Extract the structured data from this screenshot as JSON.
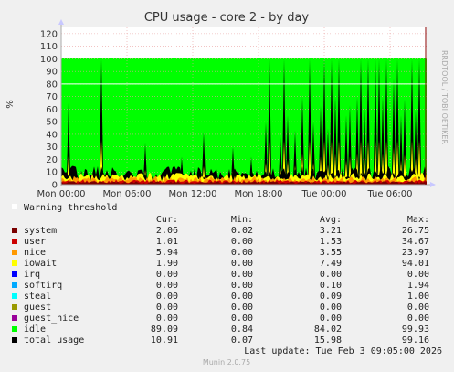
{
  "chart_data": {
    "type": "area",
    "title": "CPU usage - core 2 - by day",
    "ylabel": "%",
    "ylim": [
      0,
      125
    ],
    "yticks": [
      0,
      10,
      20,
      30,
      40,
      50,
      60,
      70,
      80,
      90,
      100,
      110,
      120
    ],
    "x_ticks": [
      "Mon 00:00",
      "Mon 06:00",
      "Mon 12:00",
      "Mon 18:00",
      "Tue 00:00",
      "Tue 06:00"
    ],
    "grid": true,
    "side_text": "RRDTOOL / TOBI OETIKER",
    "warning_threshold": 80,
    "warning_label": "Warning threshold",
    "columns": [
      "Cur:",
      "Min:",
      "Avg:",
      "Max:"
    ],
    "series": [
      {
        "name": "system",
        "color": "#7a0000",
        "cur": "2.06",
        "min": "0.02",
        "avg": "3.21",
        "max": "26.75"
      },
      {
        "name": "user",
        "color": "#cc0000",
        "cur": "1.01",
        "min": "0.00",
        "avg": "1.53",
        "max": "34.67"
      },
      {
        "name": "nice",
        "color": "#ff9900",
        "cur": "5.94",
        "min": "0.00",
        "avg": "3.55",
        "max": "23.97"
      },
      {
        "name": "iowait",
        "color": "#ffff00",
        "cur": "1.90",
        "min": "0.00",
        "avg": "7.49",
        "max": "94.01"
      },
      {
        "name": "irq",
        "color": "#0000ff",
        "cur": "0.00",
        "min": "0.00",
        "avg": "0.00",
        "max": "0.00"
      },
      {
        "name": "softirq",
        "color": "#00aaff",
        "cur": "0.00",
        "min": "0.00",
        "avg": "0.10",
        "max": "1.94"
      },
      {
        "name": "steal",
        "color": "#00ffff",
        "cur": "0.00",
        "min": "0.00",
        "avg": "0.09",
        "max": "1.00"
      },
      {
        "name": "guest",
        "color": "#999900",
        "cur": "0.00",
        "min": "0.00",
        "avg": "0.00",
        "max": "0.00"
      },
      {
        "name": "guest_nice",
        "color": "#990099",
        "cur": "0.00",
        "min": "0.00",
        "avg": "0.00",
        "max": "0.00"
      },
      {
        "name": "idle",
        "color": "#00ff00",
        "cur": "89.09",
        "min": "0.84",
        "avg": "84.02",
        "max": "99.93"
      },
      {
        "name": "total usage",
        "color": "#000000",
        "cur": "10.91",
        "min": "0.07",
        "avg": "15.98",
        "max": "99.16"
      }
    ],
    "spikes_total": [
      [
        0.02,
        65
      ],
      [
        0.11,
        100
      ],
      [
        0.23,
        33
      ],
      [
        0.33,
        22
      ],
      [
        0.39,
        42
      ],
      [
        0.47,
        30
      ],
      [
        0.52,
        22
      ],
      [
        0.56,
        50
      ],
      [
        0.57,
        100
      ],
      [
        0.6,
        38
      ],
      [
        0.61,
        100
      ],
      [
        0.62,
        55
      ],
      [
        0.64,
        43
      ],
      [
        0.66,
        70
      ],
      [
        0.68,
        100
      ],
      [
        0.69,
        50
      ],
      [
        0.71,
        63
      ],
      [
        0.72,
        100
      ],
      [
        0.73,
        45
      ],
      [
        0.74,
        100
      ],
      [
        0.75,
        70
      ],
      [
        0.76,
        100
      ],
      [
        0.78,
        55
      ],
      [
        0.79,
        63
      ],
      [
        0.81,
        70
      ],
      [
        0.82,
        100
      ],
      [
        0.83,
        62
      ],
      [
        0.84,
        100
      ],
      [
        0.86,
        100
      ],
      [
        0.87,
        100
      ],
      [
        0.88,
        70
      ],
      [
        0.89,
        100
      ],
      [
        0.91,
        85
      ],
      [
        0.92,
        100
      ],
      [
        0.93,
        55
      ],
      [
        0.94,
        68
      ],
      [
        0.96,
        100
      ],
      [
        0.97,
        60
      ],
      [
        0.98,
        100
      ]
    ]
  },
  "footer": {
    "last_update": "Last update: Tue Feb  3 09:05:00 2026",
    "version": "Munin 2.0.75"
  }
}
